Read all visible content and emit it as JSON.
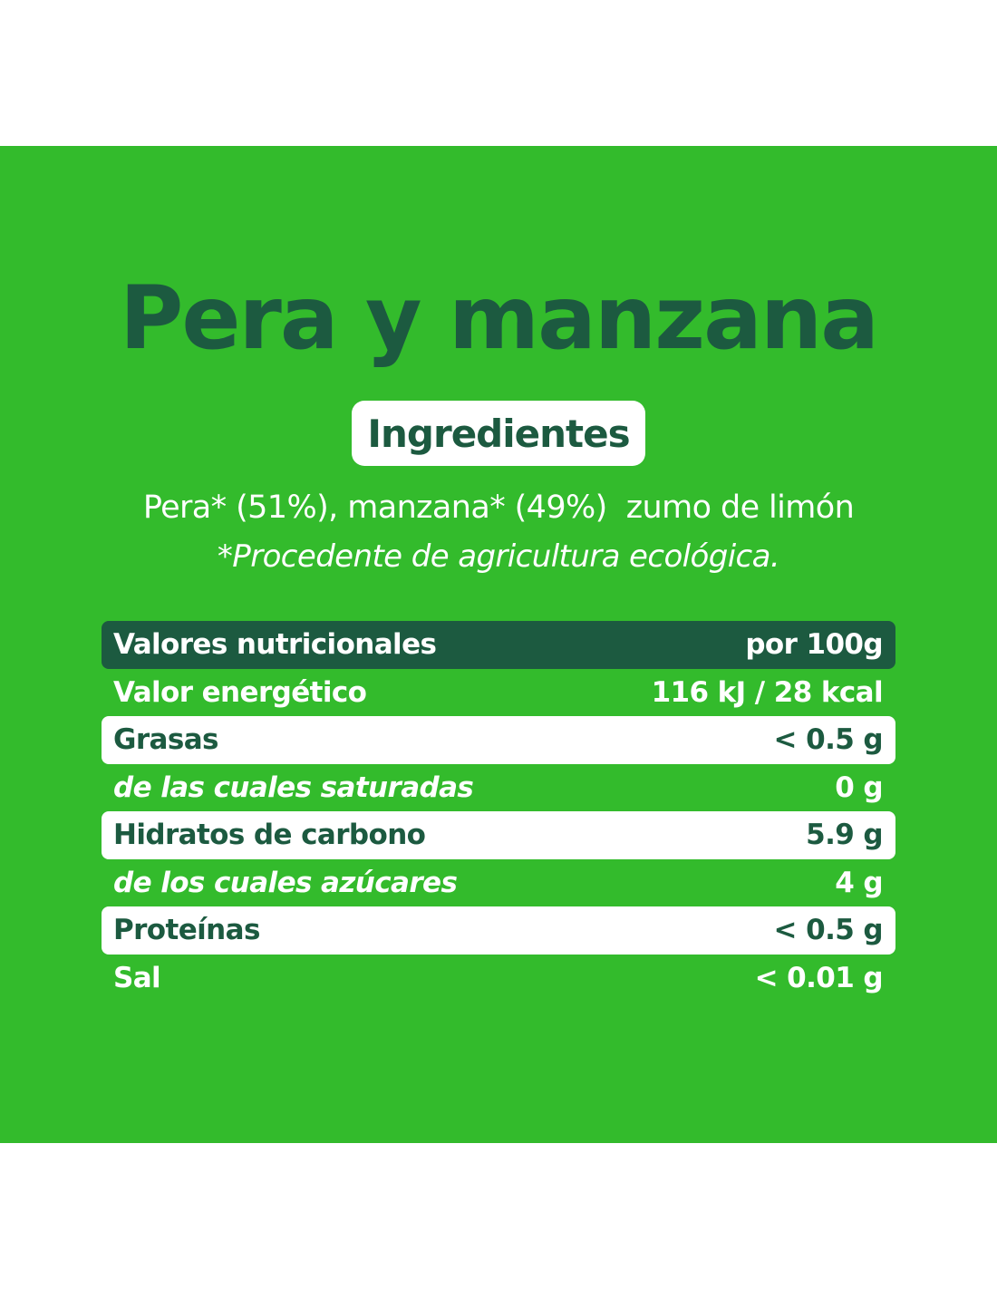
{
  "title": "Pera y manzana",
  "ingredients_heading": "Ingredientes",
  "ingredients_text": "Pera* (51%), manzana* (49%)  zumo de limón",
  "ingredients_note": "*Procedente de agricultura ecológica.",
  "colors": {
    "background_green": "#33bb2c",
    "dark_green": "#1c5a40",
    "white": "#ffffff"
  },
  "nutrition": {
    "header": {
      "label": "Valores nutricionales",
      "value": "por 100g"
    },
    "rows": [
      {
        "label": "Valor energético",
        "value": "116 kJ / 28 kcal"
      },
      {
        "label": "Grasas",
        "value": "< 0.5 g"
      },
      {
        "label": "de las cuales saturadas",
        "value": "0 g"
      },
      {
        "label": "Hidratos de carbono",
        "value": "5.9 g"
      },
      {
        "label": "de los cuales azúcares",
        "value": "4 g"
      },
      {
        "label": "Proteínas",
        "value": "< 0.5 g"
      },
      {
        "label": "Sal",
        "value": "< 0.01 g"
      }
    ]
  }
}
